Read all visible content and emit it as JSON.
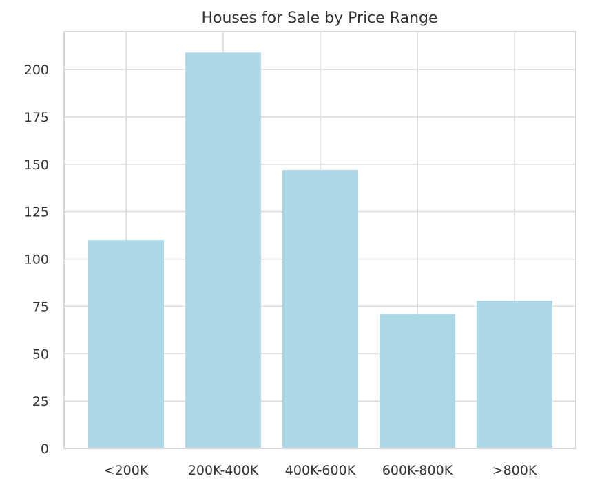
{
  "chart_data": {
    "type": "bar",
    "title": "Houses for Sale by Price Range",
    "xlabel": "",
    "ylabel": "",
    "categories": [
      "<200K",
      "200K-400K",
      "400K-600K",
      "600K-800K",
      ">800K"
    ],
    "values": [
      110,
      209,
      147,
      71,
      78
    ],
    "ylim": [
      0,
      220
    ],
    "yticks": [
      0,
      25,
      50,
      75,
      100,
      125,
      150,
      175,
      200
    ],
    "ytick_labels": [
      "0",
      "25",
      "50",
      "75",
      "100",
      "125",
      "150",
      "175",
      "200"
    ],
    "grid": true,
    "bar_color": "#add8e6"
  }
}
